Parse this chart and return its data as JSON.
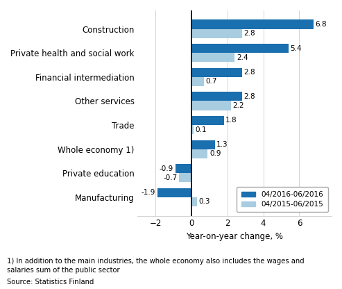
{
  "categories": [
    "Construction",
    "Private health and social work",
    "Financial intermediation",
    "Other services",
    "Trade",
    "Whole economy 1)",
    "Private education",
    "Manufacturing"
  ],
  "series_2016": [
    6.8,
    5.4,
    2.8,
    2.8,
    1.8,
    1.3,
    -0.9,
    -1.9
  ],
  "series_2015": [
    2.8,
    2.4,
    0.7,
    2.2,
    0.1,
    0.9,
    -0.7,
    0.3
  ],
  "color_2016": "#1a6faf",
  "color_2015": "#a8cce0",
  "xlabel": "Year-on-year change, %",
  "xlim": [
    -3.0,
    7.8
  ],
  "xticks": [
    -2,
    0,
    2,
    4,
    6
  ],
  "legend_labels": [
    "04/2016-06/2016",
    "04/2015-06/2015"
  ],
  "footnote1": "1) In addition to the main industries, the whole economy also includes the wages and",
  "footnote2": "salaries sum of the public sector",
  "source": "Source: Statistics Finland",
  "bar_height": 0.38,
  "background_color": "#ffffff"
}
